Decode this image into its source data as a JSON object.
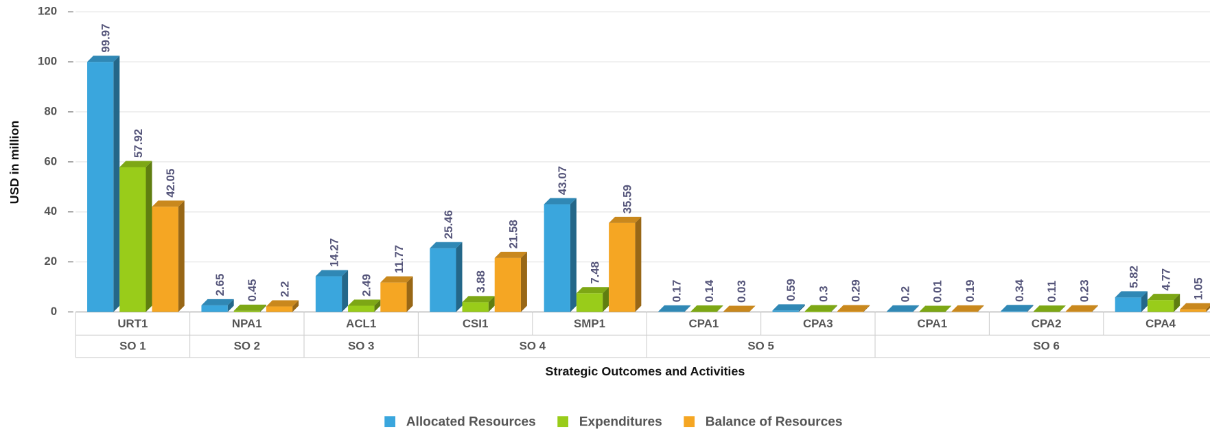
{
  "chart_data": {
    "type": "bar",
    "x_label": "Strategic Outcomes and Activities",
    "y_label": "USD in million",
    "categories": [
      "URT1",
      "NPA1",
      "ACL1",
      "CSI1",
      "SMP1",
      "CPA1",
      "CPA3",
      "CPA1",
      "CPA2",
      "CPA4"
    ],
    "groups": [
      {
        "label": "SO 1",
        "span": 1
      },
      {
        "label": "SO 2",
        "span": 1
      },
      {
        "label": "SO 3",
        "span": 1
      },
      {
        "label": "SO 4",
        "span": 2
      },
      {
        "label": "SO 5",
        "span": 2
      },
      {
        "label": "SO 6",
        "span": 3
      }
    ],
    "series": [
      {
        "name": "Allocated Resources",
        "color": "#3aa6dd",
        "values": [
          99.97,
          2.65,
          14.27,
          25.46,
          43.07,
          0.17,
          0.59,
          0.2,
          0.34,
          5.82
        ]
      },
      {
        "name": "Expenditures",
        "color": "#99cc1a",
        "values": [
          57.92,
          0.45,
          2.49,
          3.88,
          7.48,
          0.14,
          0.3,
          0.01,
          0.11,
          4.77
        ]
      },
      {
        "name": "Balance of Resources",
        "color": "#f5a623",
        "values": [
          42.05,
          2.2,
          11.77,
          21.58,
          35.59,
          0.03,
          0.29,
          0.19,
          0.23,
          1.05
        ]
      }
    ],
    "ylim": [
      0,
      120
    ],
    "yticks": [
      0,
      20,
      40,
      60,
      80,
      100,
      120
    ],
    "grid": true,
    "legend": "bottom"
  }
}
